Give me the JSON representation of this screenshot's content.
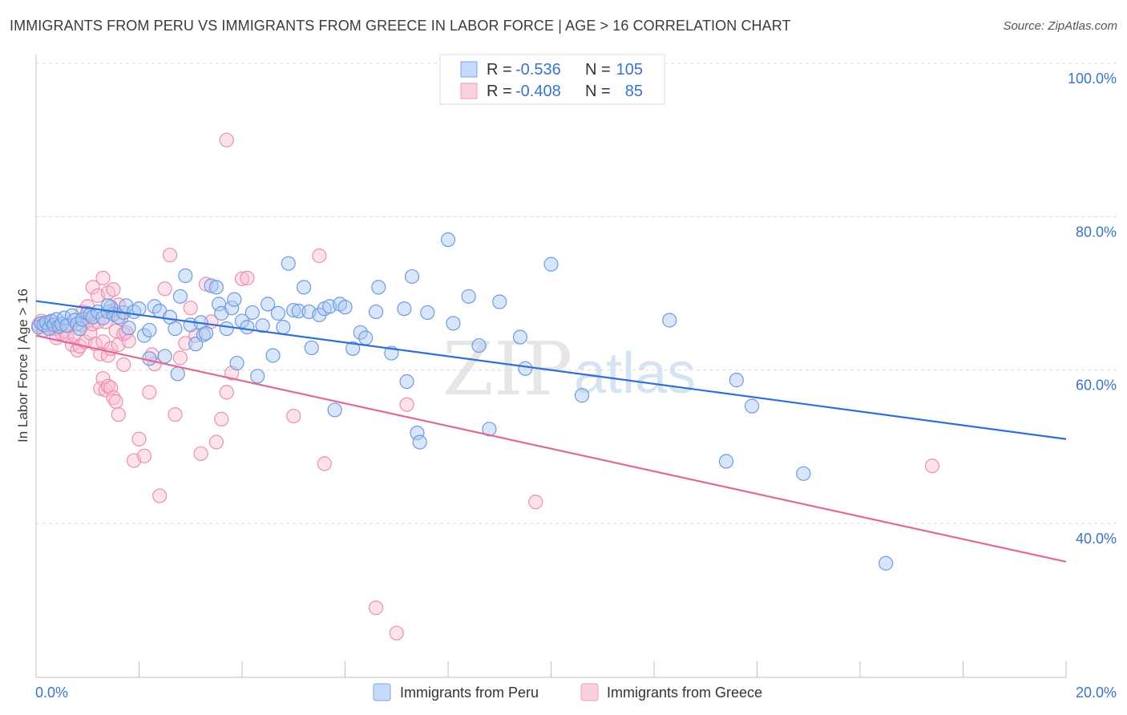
{
  "title": "IMMIGRANTS FROM PERU VS IMMIGRANTS FROM GREECE IN LABOR FORCE | AGE > 16 CORRELATION CHART",
  "source": "Source: ZipAtlas.com",
  "watermark": {
    "zip": "ZIP",
    "atlas": "atlas"
  },
  "legend": {
    "r_label": "R =",
    "n_label": "N =",
    "rows": [
      {
        "r": "-0.536",
        "n": "105",
        "color": "#5b8fd9"
      },
      {
        "r": "-0.408",
        "n": "85",
        "color": "#e67fa2"
      }
    ]
  },
  "chart_data": {
    "type": "scatter",
    "title": "IMMIGRANTS FROM PERU VS IMMIGRANTS FROM GREECE IN LABOR FORCE | AGE > 16 CORRELATION CHART",
    "xlabel": "",
    "ylabel": "In Labor Force | Age > 16",
    "xlim": [
      0,
      20
    ],
    "ylim": [
      20,
      100
    ],
    "x_tick_labels": [
      "0.0%",
      "20.0%"
    ],
    "y_tick_labels": [
      "100.0%",
      "80.0%",
      "60.0%",
      "40.0%"
    ],
    "y_ticks": [
      100,
      80,
      60,
      40
    ],
    "grid": true,
    "legend_position": "top-center",
    "series": [
      {
        "name": "Immigrants from Peru",
        "color": "#5b8fd9",
        "trend": {
          "x": [
            0,
            20
          ],
          "y": [
            69.0,
            51.0
          ]
        },
        "points": [
          [
            0.05,
            65.6
          ],
          [
            0.1,
            66.1
          ],
          [
            0.15,
            65.9
          ],
          [
            0.2,
            66.2
          ],
          [
            0.25,
            65.4
          ],
          [
            0.3,
            66.4
          ],
          [
            0.35,
            65.9
          ],
          [
            0.4,
            66.6
          ],
          [
            0.45,
            65.7
          ],
          [
            0.5,
            66.0
          ],
          [
            0.55,
            66.8
          ],
          [
            0.6,
            65.8
          ],
          [
            0.7,
            67.1
          ],
          [
            0.75,
            66.5
          ],
          [
            0.8,
            66.0
          ],
          [
            0.85,
            65.4
          ],
          [
            0.9,
            66.6
          ],
          [
            1.0,
            67.4
          ],
          [
            1.05,
            67.2
          ],
          [
            1.1,
            66.9
          ],
          [
            1.2,
            67.6
          ],
          [
            1.3,
            66.8
          ],
          [
            1.4,
            67.6
          ],
          [
            1.45,
            68.2
          ],
          [
            1.5,
            67.3
          ],
          [
            1.6,
            66.9
          ],
          [
            1.7,
            67.5
          ],
          [
            1.75,
            68.4
          ],
          [
            1.8,
            65.5
          ],
          [
            1.9,
            67.6
          ],
          [
            2.0,
            68.0
          ],
          [
            2.1,
            64.5
          ],
          [
            2.2,
            65.2
          ],
          [
            2.3,
            68.3
          ],
          [
            2.4,
            67.7
          ],
          [
            2.5,
            61.8
          ],
          [
            2.6,
            66.9
          ],
          [
            2.7,
            65.4
          ],
          [
            2.75,
            59.5
          ],
          [
            2.8,
            69.6
          ],
          [
            2.9,
            72.3
          ],
          [
            3.0,
            65.9
          ],
          [
            3.1,
            63.4
          ],
          [
            3.2,
            66.2
          ],
          [
            3.25,
            64.6
          ],
          [
            3.3,
            64.8
          ],
          [
            3.4,
            71.0
          ],
          [
            3.5,
            70.8
          ],
          [
            3.55,
            68.6
          ],
          [
            3.6,
            67.4
          ],
          [
            3.7,
            65.4
          ],
          [
            3.8,
            68.1
          ],
          [
            3.85,
            69.2
          ],
          [
            3.9,
            60.9
          ],
          [
            4.0,
            66.4
          ],
          [
            4.1,
            65.6
          ],
          [
            4.2,
            67.5
          ],
          [
            4.3,
            59.2
          ],
          [
            4.4,
            65.8
          ],
          [
            4.5,
            68.6
          ],
          [
            4.6,
            61.9
          ],
          [
            4.7,
            67.4
          ],
          [
            4.8,
            65.6
          ],
          [
            4.9,
            73.9
          ],
          [
            5.0,
            67.8
          ],
          [
            5.1,
            67.7
          ],
          [
            5.2,
            70.8
          ],
          [
            5.3,
            67.6
          ],
          [
            5.35,
            62.9
          ],
          [
            5.5,
            67.2
          ],
          [
            5.6,
            68.0
          ],
          [
            5.7,
            68.3
          ],
          [
            5.8,
            54.8
          ],
          [
            5.9,
            68.6
          ],
          [
            6.0,
            68.2
          ],
          [
            6.15,
            62.8
          ],
          [
            6.3,
            64.9
          ],
          [
            6.4,
            64.2
          ],
          [
            6.6,
            67.6
          ],
          [
            6.65,
            70.8
          ],
          [
            6.9,
            62.2
          ],
          [
            7.15,
            68.0
          ],
          [
            7.2,
            58.5
          ],
          [
            7.3,
            72.2
          ],
          [
            7.4,
            51.8
          ],
          [
            7.45,
            50.6
          ],
          [
            7.6,
            67.5
          ],
          [
            8.0,
            77.0
          ],
          [
            8.1,
            66.1
          ],
          [
            8.4,
            69.6
          ],
          [
            8.6,
            63.2
          ],
          [
            8.8,
            52.3
          ],
          [
            9.0,
            68.9
          ],
          [
            9.4,
            64.3
          ],
          [
            9.5,
            60.2
          ],
          [
            10.0,
            73.8
          ],
          [
            10.6,
            56.7
          ],
          [
            12.3,
            66.5
          ],
          [
            13.4,
            48.1
          ],
          [
            13.6,
            58.7
          ],
          [
            13.9,
            55.3
          ],
          [
            14.9,
            46.5
          ],
          [
            16.5,
            34.8
          ],
          [
            2.2,
            61.5
          ],
          [
            1.4,
            68.4
          ]
        ]
      },
      {
        "name": "Immigrants from Greece",
        "color": "#e67fa2",
        "trend": {
          "x": [
            0,
            20
          ],
          "y": [
            64.5,
            35.0
          ]
        },
        "points": [
          [
            0.05,
            65.9
          ],
          [
            0.1,
            66.4
          ],
          [
            0.15,
            65.2
          ],
          [
            0.2,
            65.7
          ],
          [
            0.25,
            65.9
          ],
          [
            0.3,
            66.3
          ],
          [
            0.35,
            65.4
          ],
          [
            0.4,
            64.2
          ],
          [
            0.45,
            65.7
          ],
          [
            0.5,
            64.8
          ],
          [
            0.55,
            65.1
          ],
          [
            0.6,
            64.4
          ],
          [
            0.65,
            65.8
          ],
          [
            0.7,
            63.3
          ],
          [
            0.75,
            64.5
          ],
          [
            0.8,
            62.6
          ],
          [
            0.85,
            63.1
          ],
          [
            0.9,
            65.9
          ],
          [
            0.95,
            63.7
          ],
          [
            1.0,
            66.4
          ],
          [
            1.05,
            64.8
          ],
          [
            1.1,
            66.0
          ],
          [
            1.15,
            63.4
          ],
          [
            1.2,
            66.3
          ],
          [
            1.25,
            62.1
          ],
          [
            1.3,
            63.7
          ],
          [
            1.35,
            66.3
          ],
          [
            1.4,
            61.9
          ],
          [
            1.45,
            62.8
          ],
          [
            1.5,
            67.8
          ],
          [
            1.55,
            65.1
          ],
          [
            1.6,
            63.3
          ],
          [
            1.65,
            66.7
          ],
          [
            1.7,
            64.7
          ],
          [
            0.9,
            67.6
          ],
          [
            1.0,
            68.3
          ],
          [
            1.1,
            70.8
          ],
          [
            1.2,
            69.7
          ],
          [
            1.3,
            72.0
          ],
          [
            1.4,
            70.1
          ],
          [
            1.5,
            70.5
          ],
          [
            1.6,
            68.5
          ],
          [
            1.25,
            57.6
          ],
          [
            1.3,
            58.9
          ],
          [
            1.35,
            57.4
          ],
          [
            1.4,
            57.9
          ],
          [
            1.45,
            57.7
          ],
          [
            1.5,
            56.4
          ],
          [
            1.55,
            55.9
          ],
          [
            1.6,
            54.2
          ],
          [
            1.7,
            60.7
          ],
          [
            1.75,
            64.9
          ],
          [
            1.8,
            63.8
          ],
          [
            1.9,
            48.2
          ],
          [
            2.0,
            51.0
          ],
          [
            2.1,
            48.8
          ],
          [
            2.2,
            57.1
          ],
          [
            2.3,
            60.8
          ],
          [
            2.4,
            43.6
          ],
          [
            2.5,
            70.6
          ],
          [
            2.6,
            75.0
          ],
          [
            2.7,
            54.2
          ],
          [
            2.8,
            61.6
          ],
          [
            2.9,
            63.5
          ],
          [
            3.0,
            68.1
          ],
          [
            3.1,
            64.5
          ],
          [
            3.2,
            49.1
          ],
          [
            3.3,
            71.2
          ],
          [
            3.4,
            66.3
          ],
          [
            3.5,
            50.6
          ],
          [
            3.6,
            53.6
          ],
          [
            3.7,
            57.1
          ],
          [
            3.8,
            59.6
          ],
          [
            4.0,
            71.9
          ],
          [
            4.1,
            72.0
          ],
          [
            5.0,
            54.0
          ],
          [
            5.5,
            74.9
          ],
          [
            5.6,
            47.8
          ],
          [
            6.6,
            29.0
          ],
          [
            7.0,
            25.7
          ],
          [
            3.7,
            90.0
          ],
          [
            7.2,
            55.5
          ],
          [
            9.7,
            42.8
          ],
          [
            17.4,
            47.5
          ],
          [
            2.25,
            62.0
          ]
        ]
      }
    ]
  },
  "bottom_legend": [
    "Immigrants from Peru",
    "Immigrants from Greece"
  ]
}
